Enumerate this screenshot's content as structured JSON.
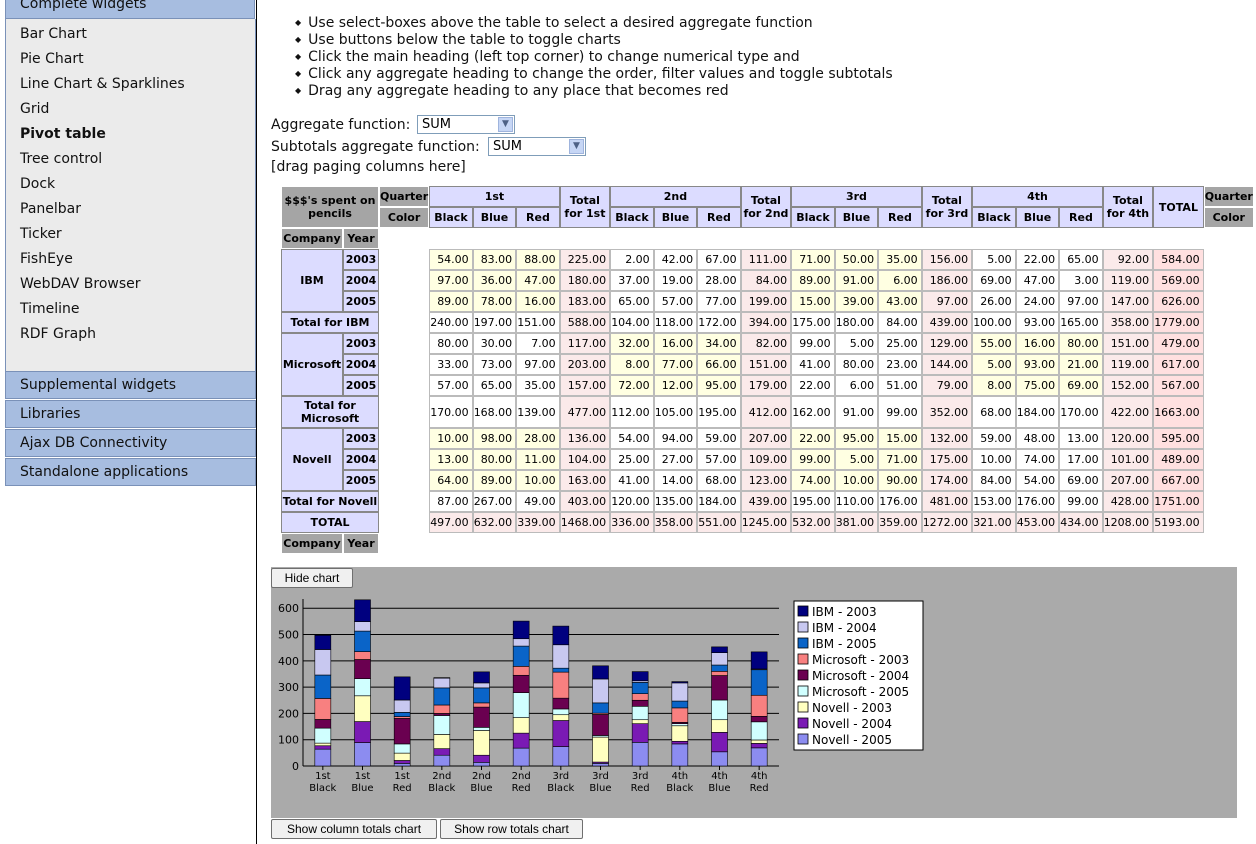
{
  "sidebar": {
    "top_category": "Complete widgets",
    "items": [
      {
        "label": "Bar Chart",
        "active": false
      },
      {
        "label": "Pie Chart",
        "active": false
      },
      {
        "label": "Line Chart & Sparklines",
        "active": false
      },
      {
        "label": "Grid",
        "active": false
      },
      {
        "label": "Pivot table",
        "active": true
      },
      {
        "label": "Tree control",
        "active": false
      },
      {
        "label": "Dock",
        "active": false
      },
      {
        "label": "Panelbar",
        "active": false
      },
      {
        "label": "Ticker",
        "active": false
      },
      {
        "label": "FishEye",
        "active": false
      },
      {
        "label": "WebDAV Browser",
        "active": false
      },
      {
        "label": "Timeline",
        "active": false
      },
      {
        "label": "RDF Graph",
        "active": false
      }
    ],
    "categories": [
      "Supplemental widgets",
      "Libraries",
      "Ajax DB Connectivity",
      "Standalone applications"
    ]
  },
  "instructions": [
    "Use select-boxes above the table to select a desired aggregate function",
    "Use buttons below the table to toggle charts",
    "Click the main heading (left top corner) to change numerical type and",
    "Click any aggregate heading to change the order, filter values and toggle subtotals",
    "Drag any aggregate heading to any place that becomes red"
  ],
  "aggregate": {
    "label": "Aggregate function:",
    "value": "SUM",
    "subtotals_label": "Subtotals aggregate function:",
    "subtotals_value": "SUM",
    "paging_hint": "[drag paging columns here]"
  },
  "pivot": {
    "corner_title": "$$$'s spent on pencils",
    "quarter_label": "Quarter",
    "color_label": "Color",
    "company_label": "Company",
    "year_label": "Year",
    "quarters": [
      {
        "name": "1st",
        "total": "Total for 1st"
      },
      {
        "name": "2nd",
        "total": "Total for 2nd"
      },
      {
        "name": "3rd",
        "total": "Total for 3rd"
      },
      {
        "name": "4th",
        "total": "Total for 4th"
      }
    ],
    "colors": [
      "Black",
      "Blue",
      "Red"
    ],
    "grand_total_label": "TOTAL",
    "companies": [
      {
        "name": "IBM",
        "total_label": "Total for IBM",
        "rows": [
          {
            "year": "2003",
            "values": [
              "54.00",
              "83.00",
              "88.00",
              "225.00",
              "2.00",
              "42.00",
              "67.00",
              "111.00",
              "71.00",
              "50.00",
              "35.00",
              "156.00",
              "5.00",
              "22.00",
              "65.00",
              "92.00",
              "584.00"
            ]
          },
          {
            "year": "2004",
            "values": [
              "97.00",
              "36.00",
              "47.00",
              "180.00",
              "37.00",
              "19.00",
              "28.00",
              "84.00",
              "89.00",
              "91.00",
              "6.00",
              "186.00",
              "69.00",
              "47.00",
              "3.00",
              "119.00",
              "569.00"
            ]
          },
          {
            "year": "2005",
            "values": [
              "89.00",
              "78.00",
              "16.00",
              "183.00",
              "65.00",
              "57.00",
              "77.00",
              "199.00",
              "15.00",
              "39.00",
              "43.00",
              "97.00",
              "26.00",
              "24.00",
              "97.00",
              "147.00",
              "626.00"
            ]
          }
        ],
        "total": [
          "240.00",
          "197.00",
          "151.00",
          "588.00",
          "104.00",
          "118.00",
          "172.00",
          "394.00",
          "175.00",
          "180.00",
          "84.00",
          "439.00",
          "100.00",
          "93.00",
          "165.00",
          "358.00",
          "1779.00"
        ]
      },
      {
        "name": "Microsoft",
        "total_label": "Total for Microsoft",
        "rows": [
          {
            "year": "2003",
            "values": [
              "80.00",
              "30.00",
              "7.00",
              "117.00",
              "32.00",
              "16.00",
              "34.00",
              "82.00",
              "99.00",
              "5.00",
              "25.00",
              "129.00",
              "55.00",
              "16.00",
              "80.00",
              "151.00",
              "479.00"
            ]
          },
          {
            "year": "2004",
            "values": [
              "33.00",
              "73.00",
              "97.00",
              "203.00",
              "8.00",
              "77.00",
              "66.00",
              "151.00",
              "41.00",
              "80.00",
              "23.00",
              "144.00",
              "5.00",
              "93.00",
              "21.00",
              "119.00",
              "617.00"
            ]
          },
          {
            "year": "2005",
            "values": [
              "57.00",
              "65.00",
              "35.00",
              "157.00",
              "72.00",
              "12.00",
              "95.00",
              "179.00",
              "22.00",
              "6.00",
              "51.00",
              "79.00",
              "8.00",
              "75.00",
              "69.00",
              "152.00",
              "567.00"
            ]
          }
        ],
        "total": [
          "170.00",
          "168.00",
          "139.00",
          "477.00",
          "112.00",
          "105.00",
          "195.00",
          "412.00",
          "162.00",
          "91.00",
          "99.00",
          "352.00",
          "68.00",
          "184.00",
          "170.00",
          "422.00",
          "1663.00"
        ]
      },
      {
        "name": "Novell",
        "total_label": "Total for Novell",
        "rows": [
          {
            "year": "2003",
            "values": [
              "10.00",
              "98.00",
              "28.00",
              "136.00",
              "54.00",
              "94.00",
              "59.00",
              "207.00",
              "22.00",
              "95.00",
              "15.00",
              "132.00",
              "59.00",
              "48.00",
              "13.00",
              "120.00",
              "595.00"
            ]
          },
          {
            "year": "2004",
            "values": [
              "13.00",
              "80.00",
              "11.00",
              "104.00",
              "25.00",
              "27.00",
              "57.00",
              "109.00",
              "99.00",
              "5.00",
              "71.00",
              "175.00",
              "10.00",
              "74.00",
              "17.00",
              "101.00",
              "489.00"
            ]
          },
          {
            "year": "2005",
            "values": [
              "64.00",
              "89.00",
              "10.00",
              "163.00",
              "41.00",
              "14.00",
              "68.00",
              "123.00",
              "74.00",
              "10.00",
              "90.00",
              "174.00",
              "84.00",
              "54.00",
              "69.00",
              "207.00",
              "667.00"
            ]
          }
        ],
        "total": [
          "87.00",
          "267.00",
          "49.00",
          "403.00",
          "120.00",
          "135.00",
          "184.00",
          "439.00",
          "195.00",
          "110.00",
          "176.00",
          "481.00",
          "153.00",
          "176.00",
          "99.00",
          "428.00",
          "1751.00"
        ]
      }
    ],
    "grand_total": [
      "497.00",
      "632.00",
      "339.00",
      "1468.00",
      "336.00",
      "358.00",
      "551.00",
      "1245.00",
      "532.00",
      "381.00",
      "359.00",
      "1272.00",
      "321.00",
      "453.00",
      "434.00",
      "1208.00",
      "5193.00"
    ]
  },
  "buttons": {
    "hide_chart": "Hide chart",
    "show_column_totals": "Show column totals chart",
    "show_row_totals": "Show row totals chart"
  },
  "chart_data": {
    "type": "bar",
    "stacked": true,
    "categories": [
      "1st Black",
      "1st Blue",
      "1st Red",
      "2nd Black",
      "2nd Blue",
      "2nd Red",
      "3rd Black",
      "3rd Blue",
      "3rd Red",
      "4th Black",
      "4th Blue",
      "4th Red"
    ],
    "ylim": [
      0,
      650
    ],
    "yticks": [
      0,
      100,
      200,
      300,
      400,
      500,
      600
    ],
    "legend_position": "right",
    "series": [
      {
        "name": "IBM - 2003",
        "color": "#00007f",
        "values": [
          54,
          83,
          88,
          2,
          42,
          67,
          71,
          50,
          35,
          5,
          22,
          65
        ]
      },
      {
        "name": "IBM - 2004",
        "color": "#c8c8f0",
        "values": [
          97,
          36,
          47,
          37,
          19,
          28,
          89,
          91,
          6,
          69,
          47,
          3
        ]
      },
      {
        "name": "IBM - 2005",
        "color": "#0a64c8",
        "values": [
          89,
          78,
          16,
          65,
          57,
          77,
          15,
          39,
          43,
          26,
          24,
          97
        ]
      },
      {
        "name": "Microsoft - 2003",
        "color": "#f88080",
        "values": [
          80,
          30,
          7,
          32,
          16,
          34,
          99,
          5,
          25,
          55,
          16,
          80
        ]
      },
      {
        "name": "Microsoft - 2004",
        "color": "#6a0050",
        "values": [
          33,
          73,
          97,
          8,
          77,
          66,
          41,
          80,
          23,
          5,
          93,
          21
        ]
      },
      {
        "name": "Microsoft - 2005",
        "color": "#d0ffff",
        "values": [
          57,
          65,
          35,
          72,
          12,
          95,
          22,
          6,
          51,
          8,
          75,
          69
        ]
      },
      {
        "name": "Novell - 2003",
        "color": "#ffffc0",
        "values": [
          10,
          98,
          28,
          54,
          94,
          59,
          22,
          95,
          15,
          59,
          48,
          13
        ]
      },
      {
        "name": "Novell - 2004",
        "color": "#7a1ab4",
        "values": [
          13,
          80,
          11,
          25,
          27,
          57,
          99,
          5,
          71,
          10,
          74,
          17
        ]
      },
      {
        "name": "Novell - 2005",
        "color": "#8c8cf0",
        "values": [
          64,
          89,
          10,
          41,
          14,
          68,
          74,
          10,
          90,
          84,
          54,
          69
        ]
      }
    ]
  }
}
